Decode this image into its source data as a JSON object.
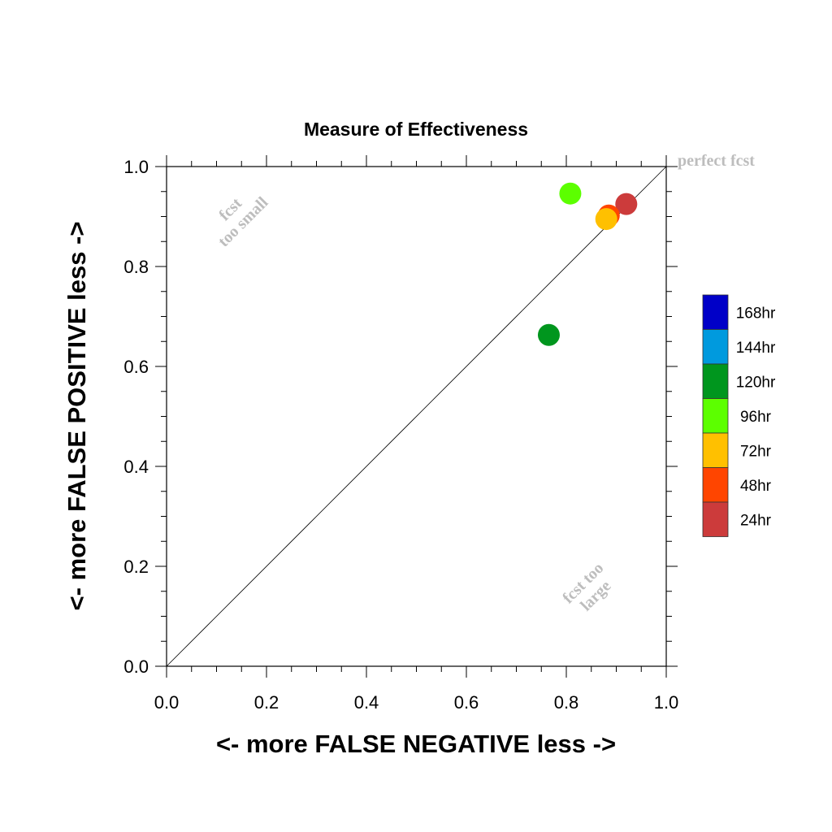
{
  "chart_data": {
    "type": "scatter",
    "title": "Measure of Effectiveness",
    "xlabel": "<- more   FALSE NEGATIVE   less ->",
    "ylabel": "<- more   FALSE POSITIVE   less ->",
    "xlim": [
      0.0,
      1.0
    ],
    "ylim": [
      0.0,
      1.0
    ],
    "xticks": [
      "0.0",
      "0.2",
      "0.4",
      "0.6",
      "0.8",
      "1.0"
    ],
    "yticks": [
      "0.0",
      "0.2",
      "0.4",
      "0.6",
      "0.8",
      "1.0"
    ],
    "grid": false,
    "diagonal_line": true,
    "annotations": {
      "perfect": "perfect fcst",
      "too_small": [
        "fcst",
        "too small"
      ],
      "too_large": [
        "fcst too",
        "large"
      ]
    },
    "series": [
      {
        "name": "24hr",
        "color": "#cc3b3b",
        "x": 0.92,
        "y": 0.925
      },
      {
        "name": "48hr",
        "color": "#ff4500",
        "x": 0.885,
        "y": 0.902
      },
      {
        "name": "72hr",
        "color": "#ffc000",
        "x": 0.88,
        "y": 0.895
      },
      {
        "name": "96hr",
        "color": "#5cff00",
        "x": 0.808,
        "y": 0.946
      },
      {
        "name": "120hr",
        "color": "#00961e",
        "x": 0.765,
        "y": 0.663
      }
    ],
    "legend": {
      "placement": "right",
      "entries": [
        {
          "label": "168hr",
          "color": "#0000c8"
        },
        {
          "label": "144hr",
          "color": "#009ade"
        },
        {
          "label": "120hr",
          "color": "#00961e"
        },
        {
          "label": "96hr",
          "color": "#5cff00"
        },
        {
          "label": "72hr",
          "color": "#ffc000"
        },
        {
          "label": "48hr",
          "color": "#ff4500"
        },
        {
          "label": "24hr",
          "color": "#cc3b3b"
        }
      ]
    }
  }
}
